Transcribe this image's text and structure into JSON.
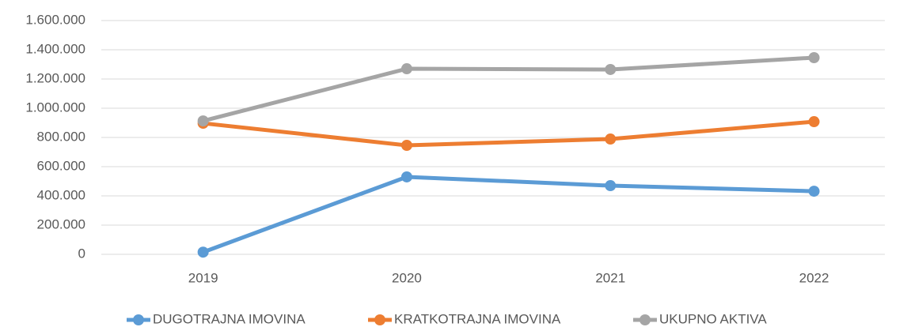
{
  "chart_data": {
    "type": "line",
    "categories": [
      "2019",
      "2020",
      "2021",
      "2022"
    ],
    "series": [
      {
        "name": "DUGOTRAJNA IMOVINA",
        "color": "#5b9bd5",
        "values": [
          15000,
          530000,
          470000,
          432000
        ]
      },
      {
        "name": "KRATKOTRAJNA IMOVINA",
        "color": "#ed7d31",
        "values": [
          897000,
          746000,
          789000,
          908000
        ]
      },
      {
        "name": "UKUPNO AKTIVA",
        "color": "#a5a5a5",
        "values": [
          913000,
          1270000,
          1265000,
          1346000
        ]
      }
    ],
    "ylim": [
      0,
      1600000
    ],
    "yticks": [
      0,
      {
        "value": 200000,
        "label": "200.000"
      },
      {
        "value": 400000,
        "label": "400.000"
      },
      {
        "value": 600000,
        "label": "600.000"
      },
      {
        "value": 800000,
        "label": "800.000"
      },
      {
        "value": 1000000,
        "label": "1.000.000"
      },
      {
        "value": 1200000,
        "label": "1.200.000"
      },
      {
        "value": 1400000,
        "label": "1.400.000"
      },
      {
        "value": 1600000,
        "label": "1.600.000"
      }
    ],
    "grid": true,
    "legend": "bottom"
  }
}
